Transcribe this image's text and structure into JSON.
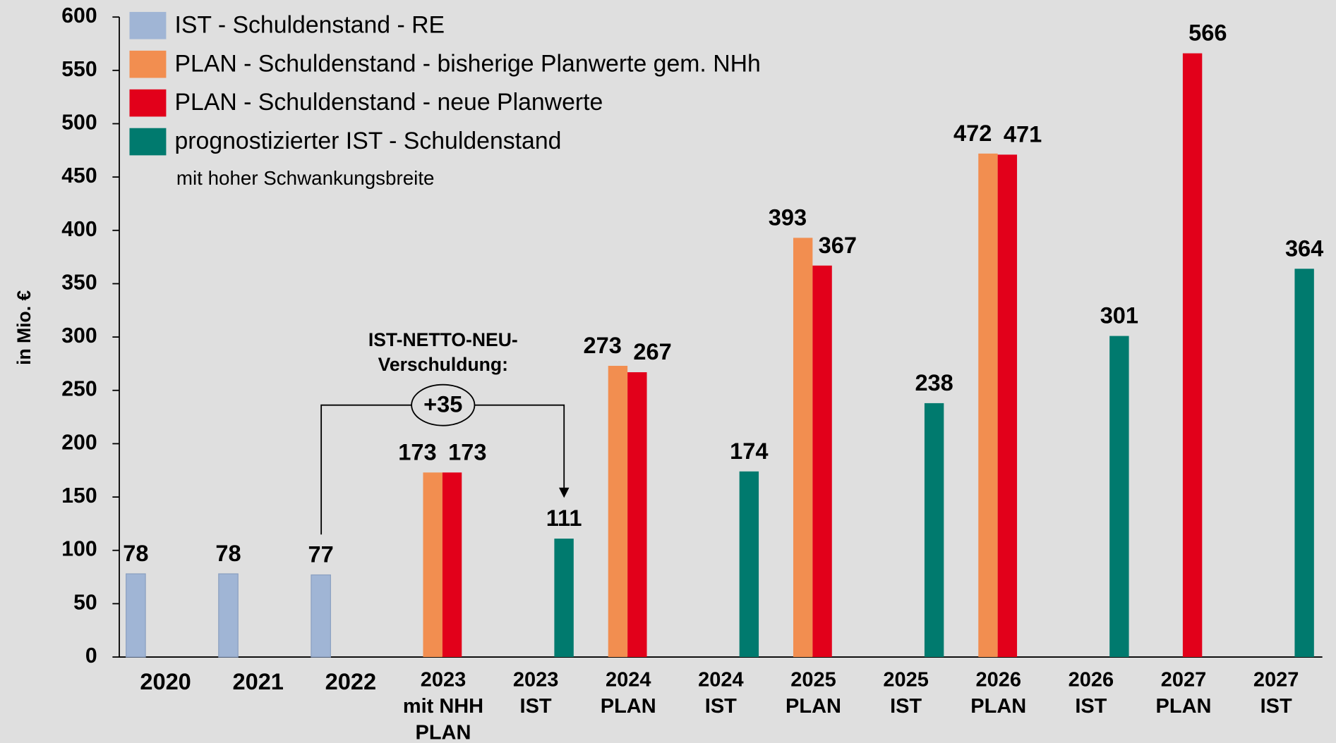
{
  "chart_data": {
    "type": "bar",
    "y_label": "in Mio. €",
    "categories": [
      [
        "2020"
      ],
      [
        "2021"
      ],
      [
        "2022"
      ],
      [
        "2023",
        "mit NHH",
        "PLAN"
      ],
      [
        "2023",
        "IST"
      ],
      [
        "2024",
        "PLAN"
      ],
      [
        "2024",
        "IST"
      ],
      [
        "2025",
        "PLAN"
      ],
      [
        "2025",
        "IST"
      ],
      [
        "2026",
        "PLAN"
      ],
      [
        "2026",
        "IST"
      ],
      [
        "2027",
        "PLAN"
      ],
      [
        "2027",
        "IST"
      ]
    ],
    "series": [
      {
        "name": "IST - Schuldenstand - RE",
        "color": "#a0b5d5",
        "values": [
          78,
          78,
          77,
          null,
          null,
          null,
          null,
          null,
          null,
          null,
          null,
          null,
          null
        ]
      },
      {
        "name": "PLAN - Schuldenstand - bisherige Planwerte gem. NHh",
        "color": "#f28e50",
        "values": [
          null,
          null,
          null,
          173,
          null,
          273,
          null,
          393,
          null,
          472,
          null,
          null,
          null
        ]
      },
      {
        "name": "PLAN - Schuldenstand - neue Planwerte",
        "color": "#e2001a",
        "values": [
          null,
          null,
          null,
          173,
          null,
          267,
          null,
          367,
          null,
          471,
          null,
          566,
          null
        ]
      },
      {
        "name": "prognostizierter IST - Schuldenstand",
        "color": "#007a6e",
        "values": [
          null,
          null,
          null,
          null,
          111,
          null,
          174,
          null,
          238,
          null,
          301,
          null,
          364
        ]
      }
    ],
    "legend_note": "mit hoher Schwankungsbreite",
    "annotation": {
      "lines": [
        "IST-NETTO-NEU-",
        "Verschuldung:"
      ],
      "value": "+35"
    },
    "ylim": [
      0,
      600
    ],
    "yticks": [
      0,
      50,
      100,
      150,
      200,
      250,
      300,
      350,
      400,
      450,
      500,
      550,
      600
    ],
    "legend": "upper left"
  }
}
